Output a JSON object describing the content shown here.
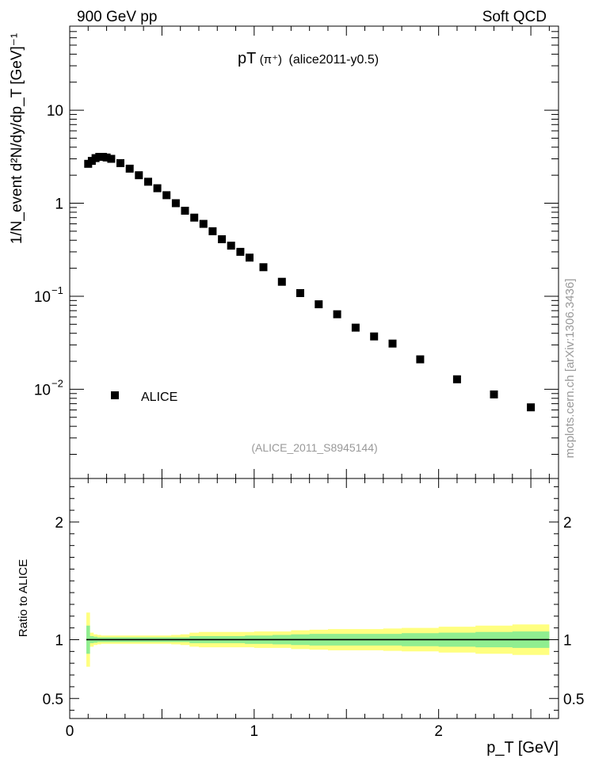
{
  "header": {
    "left": "900 GeV pp",
    "right": "Soft QCD"
  },
  "side_label": "mcplots.cern.ch [arXiv:1306.3436]",
  "chart_data": [
    {
      "type": "scatter",
      "title_main": "pT",
      "title_particle": "(π⁺)",
      "title_tag": "(alice2011-y0.5)",
      "analysis_label": "(ALICE_2011_S8945144)",
      "ylabel": "1/N_event d²N/dy/dp_T [GeV]⁻¹",
      "yscale": "log",
      "ylim": [
        0.0011,
        80
      ],
      "xlim": [
        0,
        2.65
      ],
      "y_ticks": [
        {
          "value": 10,
          "label": "10"
        },
        {
          "value": 1,
          "label": "1"
        },
        {
          "value": 0.1,
          "label": "10",
          "exp": "−1"
        },
        {
          "value": 0.01,
          "label": "10",
          "exp": "−2"
        }
      ],
      "legend": {
        "label": "ALICE",
        "marker": "square",
        "position": "lower-left"
      },
      "series": [
        {
          "name": "ALICE",
          "color": "#000000",
          "x": [
            0.1,
            0.12,
            0.14,
            0.16,
            0.18,
            0.2,
            0.225,
            0.275,
            0.325,
            0.375,
            0.425,
            0.475,
            0.525,
            0.575,
            0.625,
            0.675,
            0.725,
            0.775,
            0.825,
            0.875,
            0.925,
            0.975,
            1.05,
            1.15,
            1.25,
            1.35,
            1.45,
            1.55,
            1.65,
            1.75,
            1.9,
            2.1,
            2.3,
            2.5
          ],
          "y": [
            2.65,
            2.85,
            3.05,
            3.15,
            3.15,
            3.1,
            3.0,
            2.7,
            2.35,
            2.0,
            1.7,
            1.45,
            1.22,
            1.0,
            0.83,
            0.7,
            0.6,
            0.5,
            0.41,
            0.35,
            0.3,
            0.26,
            0.205,
            0.143,
            0.108,
            0.082,
            0.064,
            0.046,
            0.037,
            0.031,
            0.021,
            0.0128,
            0.0088,
            0.0064
          ]
        }
      ]
    },
    {
      "type": "area",
      "ylabel": "Ratio to ALICE",
      "xlabel": "p_T [GeV]",
      "xlim": [
        0,
        2.65
      ],
      "ylim": [
        0.33,
        2.37
      ],
      "x_ticks": [
        {
          "value": 0,
          "label": "0"
        },
        {
          "value": 1,
          "label": "1"
        },
        {
          "value": 2,
          "label": "2"
        }
      ],
      "y_ticks": [
        {
          "value": 0.5,
          "label": "0.5"
        },
        {
          "value": 1,
          "label": "1"
        },
        {
          "value": 2,
          "label": "2"
        }
      ],
      "reference": 1.0,
      "bins": [
        0.09,
        0.11,
        0.13,
        0.15,
        0.17,
        0.19,
        0.21,
        0.25,
        0.3,
        0.35,
        0.4,
        0.45,
        0.5,
        0.55,
        0.6,
        0.65,
        0.7,
        0.75,
        0.8,
        0.85,
        0.9,
        0.95,
        1.0,
        1.1,
        1.2,
        1.3,
        1.4,
        1.5,
        1.6,
        1.7,
        1.8,
        2.0,
        2.2,
        2.4,
        2.6
      ],
      "bands": [
        {
          "name": "total uncertainty",
          "color": "#ffff80",
          "half_width": [
            0.23,
            0.06,
            0.045,
            0.04,
            0.035,
            0.035,
            0.035,
            0.035,
            0.035,
            0.035,
            0.035,
            0.035,
            0.035,
            0.04,
            0.045,
            0.06,
            0.065,
            0.065,
            0.065,
            0.065,
            0.065,
            0.065,
            0.07,
            0.07,
            0.08,
            0.085,
            0.09,
            0.09,
            0.09,
            0.095,
            0.1,
            0.11,
            0.12,
            0.13
          ]
        },
        {
          "name": "statistical uncertainty",
          "color": "#90ee90",
          "half_width": [
            0.12,
            0.03,
            0.025,
            0.02,
            0.02,
            0.02,
            0.02,
            0.02,
            0.02,
            0.02,
            0.02,
            0.02,
            0.02,
            0.02,
            0.02,
            0.03,
            0.03,
            0.03,
            0.03,
            0.03,
            0.03,
            0.035,
            0.035,
            0.04,
            0.045,
            0.05,
            0.05,
            0.05,
            0.05,
            0.05,
            0.055,
            0.06,
            0.065,
            0.07
          ]
        }
      ]
    }
  ]
}
